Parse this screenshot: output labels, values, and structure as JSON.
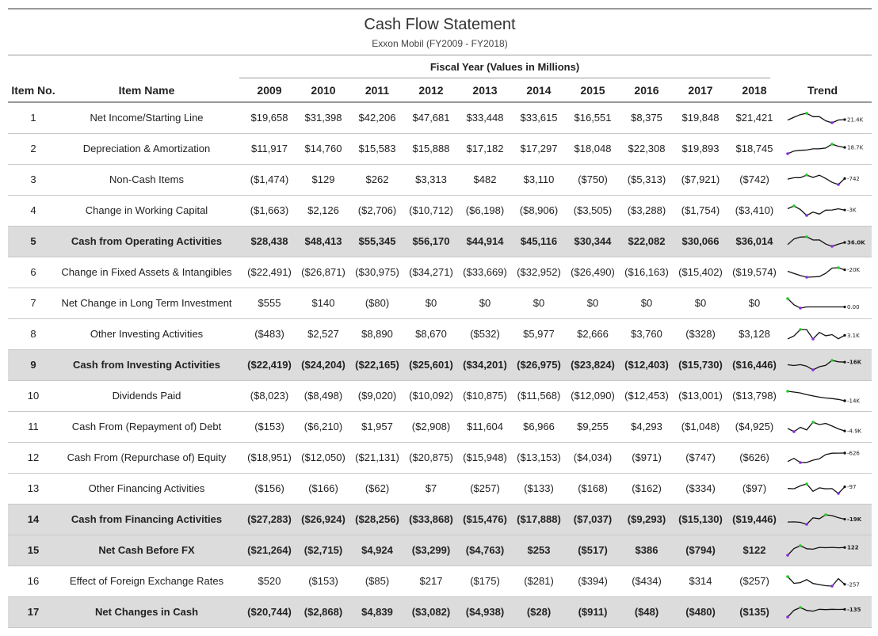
{
  "header": {
    "title": "Cash Flow Statement",
    "subtitle": "Exxon Mobil (FY2009 - FY2018)",
    "fiscal_year_label": "Fiscal Year (Values in Millions)",
    "col_item_no": "Item No.",
    "col_item_name": "Item Name",
    "col_trend": "Trend",
    "years": [
      "2009",
      "2010",
      "2011",
      "2012",
      "2013",
      "2014",
      "2015",
      "2016",
      "2017",
      "2018"
    ]
  },
  "colors": {
    "total_row_bg": "#dcdcdc",
    "rule": "#9a9a9a",
    "trend_line": "#111111",
    "trend_min": "#8a2be2",
    "trend_max": "#22cc22"
  },
  "rows": [
    {
      "no": "1",
      "name": "Net Income/Starting Line",
      "total": false,
      "values": [
        "$19,658",
        "$31,398",
        "$42,206",
        "$47,681",
        "$33,448",
        "$33,615",
        "$16,551",
        "$8,375",
        "$19,848",
        "$21,421"
      ],
      "trend_label": "21.4K"
    },
    {
      "no": "2",
      "name": "Depreciation & Amortization",
      "total": false,
      "values": [
        "$11,917",
        "$14,760",
        "$15,583",
        "$15,888",
        "$17,182",
        "$17,297",
        "$18,048",
        "$22,308",
        "$19,893",
        "$18,745"
      ],
      "trend_label": "18.7K"
    },
    {
      "no": "3",
      "name": "Non-Cash Items",
      "total": false,
      "values": [
        "($1,474)",
        "$129",
        "$262",
        "$3,313",
        "$482",
        "$3,110",
        "($750)",
        "($5,313)",
        "($7,921)",
        "($742)"
      ],
      "trend_label": "-742"
    },
    {
      "no": "4",
      "name": "Change in Working Capital",
      "total": false,
      "values": [
        "($1,663)",
        "$2,126",
        "($2,706)",
        "($10,712)",
        "($6,198)",
        "($8,906)",
        "($3,505)",
        "($3,288)",
        "($1,754)",
        "($3,410)"
      ],
      "trend_label": "-3K"
    },
    {
      "no": "5",
      "name": "Cash from Operating Activities",
      "total": true,
      "values": [
        "$28,438",
        "$48,413",
        "$55,345",
        "$56,170",
        "$44,914",
        "$45,116",
        "$30,344",
        "$22,082",
        "$30,066",
        "$36,014"
      ],
      "trend_label": "36.0K"
    },
    {
      "no": "6",
      "name": "Change in Fixed Assets & Intangibles",
      "total": false,
      "values": [
        "($22,491)",
        "($26,871)",
        "($30,975)",
        "($34,271)",
        "($33,669)",
        "($32,952)",
        "($26,490)",
        "($16,163)",
        "($15,402)",
        "($19,574)"
      ],
      "trend_label": "-20K"
    },
    {
      "no": "7",
      "name": "Net Change in Long Term Investment",
      "total": false,
      "values": [
        "$555",
        "$140",
        "($80)",
        "$0",
        "$0",
        "$0",
        "$0",
        "$0",
        "$0",
        "$0"
      ],
      "trend_label": "0.00"
    },
    {
      "no": "8",
      "name": "Other Investing Activities",
      "total": false,
      "values": [
        "($483)",
        "$2,527",
        "$8,890",
        "$8,670",
        "($532)",
        "$5,977",
        "$2,666",
        "$3,760",
        "($328)",
        "$3,128"
      ],
      "trend_label": "3.1K"
    },
    {
      "no": "9",
      "name": "Cash from Investing Activities",
      "total": true,
      "values": [
        "($22,419)",
        "($24,204)",
        "($22,165)",
        "($25,601)",
        "($34,201)",
        "($26,975)",
        "($23,824)",
        "($12,403)",
        "($15,730)",
        "($16,446)"
      ],
      "trend_label": "-16K"
    },
    {
      "no": "10",
      "name": "Dividends Paid",
      "total": false,
      "values": [
        "($8,023)",
        "($8,498)",
        "($9,020)",
        "($10,092)",
        "($10,875)",
        "($11,568)",
        "($12,090)",
        "($12,453)",
        "($13,001)",
        "($13,798)"
      ],
      "trend_label": "-14K"
    },
    {
      "no": "11",
      "name": "Cash From (Repayment of) Debt",
      "total": false,
      "values": [
        "($153)",
        "($6,210)",
        "$1,957",
        "($2,908)",
        "$11,604",
        "$6,966",
        "$9,255",
        "$4,293",
        "($1,048)",
        "($4,925)"
      ],
      "trend_label": "-4.9K"
    },
    {
      "no": "12",
      "name": "Cash From (Repurchase of) Equity",
      "total": false,
      "values": [
        "($18,951)",
        "($12,050)",
        "($21,131)",
        "($20,875)",
        "($15,948)",
        "($13,153)",
        "($4,034)",
        "($971)",
        "($747)",
        "($626)"
      ],
      "trend_label": "-626"
    },
    {
      "no": "13",
      "name": "Other Financing Activities",
      "total": false,
      "values": [
        "($156)",
        "($166)",
        "($62)",
        "$7",
        "($257)",
        "($133)",
        "($168)",
        "($162)",
        "($334)",
        "($97)"
      ],
      "trend_label": "-97"
    },
    {
      "no": "14",
      "name": "Cash from Financing Activities",
      "total": true,
      "values": [
        "($27,283)",
        "($26,924)",
        "($28,256)",
        "($33,868)",
        "($15,476)",
        "($17,888)",
        "($7,037)",
        "($9,293)",
        "($15,130)",
        "($19,446)"
      ],
      "trend_label": "-19K"
    },
    {
      "no": "15",
      "name": "Net Cash Before FX",
      "total": true,
      "values": [
        "($21,264)",
        "($2,715)",
        "$4,924",
        "($3,299)",
        "($4,763)",
        "$253",
        "($517)",
        "$386",
        "($794)",
        "$122"
      ],
      "trend_label": "122"
    },
    {
      "no": "16",
      "name": "Effect of Foreign Exchange Rates",
      "total": false,
      "values": [
        "$520",
        "($153)",
        "($85)",
        "$217",
        "($175)",
        "($281)",
        "($394)",
        "($434)",
        "$314",
        "($257)"
      ],
      "trend_label": "-257"
    },
    {
      "no": "17",
      "name": "Net Changes in Cash",
      "total": true,
      "values": [
        "($20,744)",
        "($2,868)",
        "$4,839",
        "($3,082)",
        "($4,938)",
        "($28)",
        "($911)",
        "($48)",
        "($480)",
        "($135)"
      ],
      "trend_label": "-135"
    }
  ]
}
